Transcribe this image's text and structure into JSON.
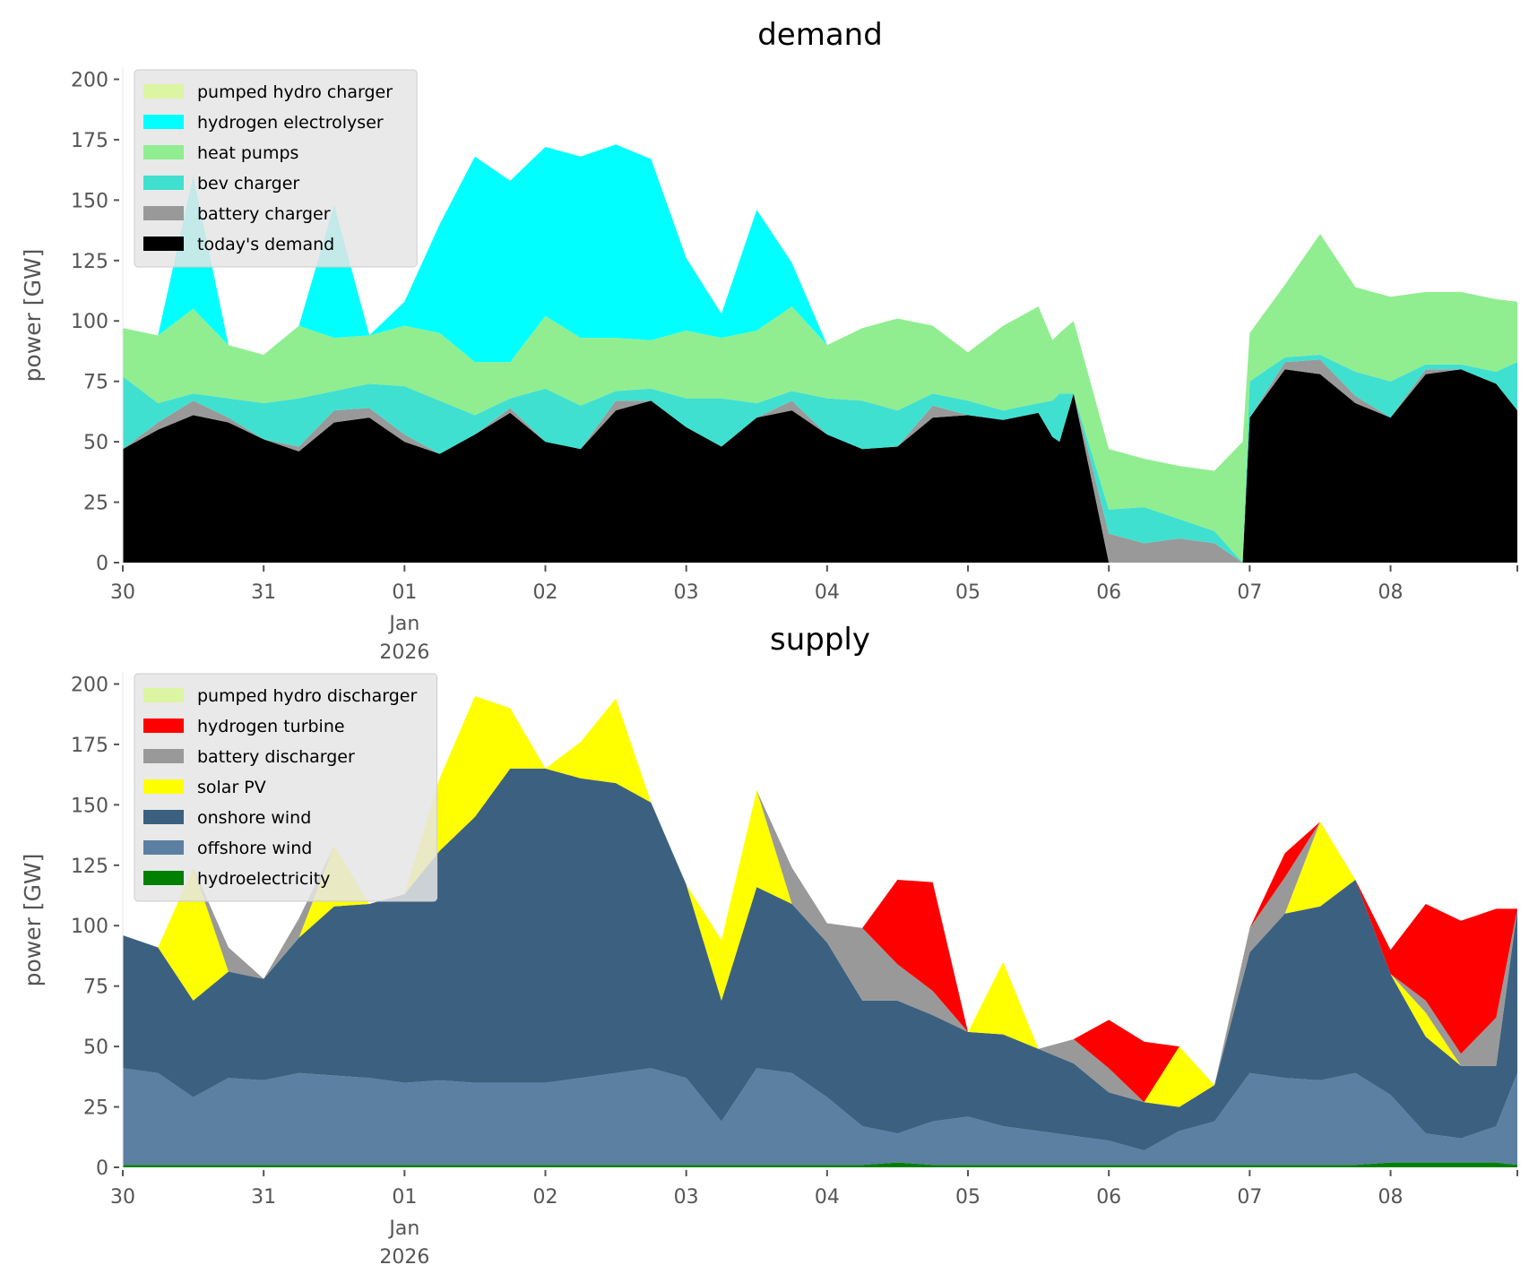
{
  "chart_data": [
    {
      "type": "area",
      "stacked": true,
      "title": "demand",
      "xlabel": "",
      "ylabel": "power [GW]",
      "ylim": [
        0,
        205
      ],
      "yticks": [
        0,
        25,
        50,
        75,
        100,
        125,
        150,
        175,
        200
      ],
      "xticks": [
        {
          "day": 0,
          "label": "30"
        },
        {
          "day": 1,
          "label": "31"
        },
        {
          "day": 2,
          "label": "01",
          "sub": [
            "Jan",
            "2026"
          ]
        },
        {
          "day": 3,
          "label": "02"
        },
        {
          "day": 4,
          "label": "03"
        },
        {
          "day": 5,
          "label": "04"
        },
        {
          "day": 6,
          "label": "05"
        },
        {
          "day": 7,
          "label": "06"
        },
        {
          "day": 8,
          "label": "07"
        },
        {
          "day": 9,
          "label": "08"
        }
      ],
      "xlim_days": [
        0,
        9.9
      ],
      "legend_position": "top-left",
      "x_days": [
        0,
        0.25,
        0.5,
        0.75,
        1,
        1.25,
        1.5,
        1.75,
        2,
        2.25,
        2.5,
        2.75,
        3,
        3.25,
        3.5,
        3.75,
        4,
        4.25,
        4.5,
        4.75,
        5,
        5.25,
        5.5,
        5.75,
        6,
        6.25,
        6.5,
        6.6,
        6.65,
        6.75,
        7,
        7.25,
        7.5,
        7.75,
        7.95,
        8,
        8.25,
        8.5,
        8.75,
        9,
        9.25,
        9.5,
        9.75,
        9.9
      ],
      "series": [
        {
          "name": "today's demand",
          "color": "#000000",
          "values": [
            47,
            55,
            61,
            58,
            51,
            46,
            58,
            60,
            50,
            45,
            53,
            62,
            50,
            47,
            63,
            67,
            56,
            48,
            60,
            63,
            53,
            47,
            48,
            60,
            61,
            59,
            62,
            52,
            50,
            70,
            0,
            0,
            0,
            0,
            0,
            60,
            80,
            78,
            66,
            60,
            78,
            80,
            74,
            63
          ]
        },
        {
          "name": "battery charger",
          "color": "#999999",
          "values": [
            0,
            3,
            6,
            2,
            0,
            2,
            5,
            4,
            3,
            0,
            0,
            2,
            0,
            0,
            4,
            0,
            0,
            0,
            0,
            4,
            0,
            0,
            0,
            5,
            0,
            0,
            0,
            0,
            0,
            0,
            12,
            8,
            10,
            8,
            0,
            0,
            3,
            6,
            3,
            0,
            2,
            0,
            0,
            0
          ]
        },
        {
          "name": "bev charger",
          "color": "#40e0d0",
          "values": [
            30,
            8,
            3,
            8,
            15,
            20,
            8,
            10,
            20,
            22,
            8,
            4,
            22,
            18,
            4,
            5,
            12,
            20,
            6,
            4,
            15,
            20,
            15,
            5,
            6,
            4,
            4,
            15,
            20,
            0,
            10,
            15,
            8,
            5,
            0,
            15,
            2,
            2,
            10,
            15,
            2,
            2,
            5,
            20
          ]
        },
        {
          "name": "heat pumps",
          "color": "#90ee90",
          "values": [
            20,
            28,
            35,
            22,
            20,
            30,
            22,
            20,
            25,
            28,
            22,
            15,
            30,
            28,
            22,
            20,
            28,
            25,
            30,
            35,
            22,
            30,
            38,
            28,
            20,
            35,
            40,
            25,
            25,
            30,
            25,
            20,
            22,
            25,
            50,
            20,
            30,
            50,
            35,
            35,
            30,
            30,
            30,
            25
          ]
        },
        {
          "name": "hydrogen electrolyser",
          "color": "#00ffff",
          "values": [
            0,
            0,
            55,
            0,
            0,
            0,
            55,
            0,
            10,
            45,
            85,
            75,
            70,
            75,
            80,
            75,
            30,
            10,
            50,
            18,
            0,
            0,
            0,
            0,
            0,
            0,
            0,
            0,
            0,
            0,
            0,
            0,
            0,
            0,
            0,
            0,
            0,
            0,
            0,
            0,
            0,
            0,
            0,
            0
          ]
        },
        {
          "name": "pumped hydro charger",
          "color": "#dcf5a3",
          "values": [
            0,
            0,
            0,
            0,
            0,
            0,
            0,
            0,
            0,
            0,
            0,
            0,
            0,
            0,
            0,
            0,
            0,
            0,
            0,
            0,
            0,
            0,
            0,
            0,
            0,
            0,
            0,
            0,
            0,
            0,
            0,
            0,
            0,
            0,
            0,
            0,
            0,
            0,
            0,
            0,
            0,
            0,
            0,
            0
          ]
        }
      ],
      "legend": [
        "pumped hydro charger",
        "hydrogen electrolyser",
        "heat pumps",
        "bev charger",
        "battery charger",
        "today's demand"
      ]
    },
    {
      "type": "area",
      "stacked": true,
      "title": "supply",
      "xlabel": "",
      "ylabel": "power [GW]",
      "ylim": [
        0,
        205
      ],
      "yticks": [
        0,
        25,
        50,
        75,
        100,
        125,
        150,
        175,
        200
      ],
      "xticks": [
        {
          "day": 0,
          "label": "30"
        },
        {
          "day": 1,
          "label": "31"
        },
        {
          "day": 2,
          "label": "01",
          "sub": [
            "Jan",
            "2026"
          ]
        },
        {
          "day": 3,
          "label": "02"
        },
        {
          "day": 4,
          "label": "03"
        },
        {
          "day": 5,
          "label": "04"
        },
        {
          "day": 6,
          "label": "05"
        },
        {
          "day": 7,
          "label": "06"
        },
        {
          "day": 8,
          "label": "07"
        },
        {
          "day": 9,
          "label": "08"
        }
      ],
      "xlim_days": [
        0,
        9.9
      ],
      "legend_position": "top-left",
      "x_days": [
        0,
        0.25,
        0.5,
        0.75,
        1,
        1.25,
        1.5,
        1.75,
        2,
        2.25,
        2.5,
        2.75,
        3,
        3.25,
        3.5,
        3.75,
        4,
        4.25,
        4.5,
        4.75,
        5,
        5.25,
        5.5,
        5.75,
        6,
        6.25,
        6.5,
        6.75,
        7,
        7.25,
        7.5,
        7.75,
        8,
        8.25,
        8.5,
        8.75,
        9,
        9.25,
        9.5,
        9.75,
        9.9
      ],
      "series": [
        {
          "name": "hydroelectricity",
          "color": "#008000",
          "values": [
            1,
            1,
            1,
            1,
            1,
            1,
            1,
            1,
            1,
            1,
            1,
            1,
            1,
            1,
            1,
            1,
            1,
            1,
            1,
            1,
            1,
            1,
            2,
            1,
            1,
            1,
            1,
            1,
            1,
            1,
            1,
            1,
            1,
            1,
            1,
            1,
            2,
            2,
            2,
            2,
            1
          ]
        },
        {
          "name": "offshore wind",
          "color": "#5b80a2",
          "values": [
            40,
            38,
            28,
            36,
            35,
            38,
            37,
            36,
            34,
            35,
            34,
            34,
            34,
            36,
            38,
            40,
            36,
            18,
            40,
            38,
            28,
            16,
            12,
            18,
            20,
            16,
            14,
            12,
            10,
            6,
            14,
            18,
            38,
            36,
            35,
            38,
            28,
            12,
            10,
            15,
            38
          ]
        },
        {
          "name": "onshore wind",
          "color": "#3c6180",
          "values": [
            55,
            52,
            40,
            44,
            42,
            56,
            70,
            72,
            78,
            95,
            110,
            130,
            130,
            124,
            120,
            110,
            80,
            50,
            75,
            70,
            64,
            52,
            55,
            44,
            35,
            38,
            34,
            30,
            20,
            20,
            10,
            15,
            50,
            68,
            72,
            80,
            50,
            40,
            30,
            25,
            68
          ]
        },
        {
          "name": "solar PV",
          "color": "#ffff00",
          "values": [
            0,
            0,
            55,
            0,
            0,
            0,
            25,
            0,
            0,
            30,
            50,
            25,
            0,
            15,
            35,
            0,
            0,
            25,
            40,
            0,
            0,
            0,
            0,
            0,
            0,
            30,
            0,
            0,
            0,
            0,
            25,
            0,
            0,
            0,
            35,
            0,
            0,
            10,
            0,
            0,
            0
          ]
        },
        {
          "name": "battery discharger",
          "color": "#999999",
          "values": [
            0,
            0,
            0,
            10,
            0,
            8,
            0,
            0,
            0,
            0,
            0,
            0,
            0,
            0,
            0,
            0,
            0,
            0,
            0,
            15,
            8,
            30,
            15,
            10,
            0,
            0,
            0,
            10,
            10,
            0,
            0,
            0,
            10,
            15,
            0,
            0,
            0,
            5,
            5,
            20,
            0
          ]
        },
        {
          "name": "hydrogen turbine",
          "color": "#ff0000",
          "values": [
            0,
            0,
            0,
            0,
            0,
            0,
            0,
            0,
            0,
            0,
            0,
            0,
            0,
            0,
            0,
            0,
            0,
            0,
            0,
            0,
            0,
            0,
            35,
            45,
            0,
            0,
            0,
            0,
            20,
            25,
            0,
            0,
            0,
            10,
            0,
            0,
            10,
            40,
            55,
            45,
            0
          ]
        },
        {
          "name": "pumped hydro discharger",
          "color": "#dcf5a3",
          "values": [
            0,
            0,
            0,
            0,
            0,
            0,
            0,
            0,
            0,
            0,
            0,
            0,
            0,
            0,
            0,
            0,
            0,
            0,
            0,
            0,
            0,
            0,
            0,
            0,
            0,
            0,
            0,
            0,
            0,
            0,
            0,
            0,
            0,
            0,
            0,
            0,
            0,
            0,
            0,
            0,
            0
          ]
        }
      ],
      "legend": [
        "pumped hydro discharger",
        "hydrogen turbine",
        "battery discharger",
        "solar PV",
        "onshore wind",
        "offshore wind",
        "hydroelectricity"
      ]
    }
  ]
}
